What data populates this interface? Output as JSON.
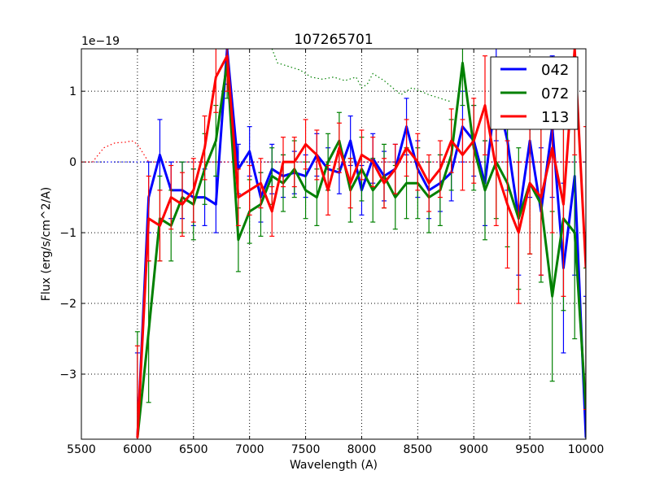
{
  "chart_data": {
    "type": "line",
    "title": "107265701",
    "xlabel": "Wavelength (A)",
    "ylabel": "Flux (erg/s/cm^2/A)",
    "y_offset_label": "1e−19",
    "xlim": [
      5500,
      10000
    ],
    "ylim": [
      -3.92,
      1.6
    ],
    "grid": true,
    "legend_position": "top-right",
    "xticks": [
      5500,
      6000,
      6500,
      7000,
      7500,
      8000,
      8500,
      9000,
      9500,
      10000
    ],
    "xtick_labels": [
      "5500",
      "6000",
      "6500",
      "7000",
      "7500",
      "8000",
      "8500",
      "9000",
      "9500",
      "10000"
    ],
    "yticks": [
      1,
      0,
      -1,
      -2,
      -3
    ],
    "ytick_labels": [
      "1",
      "0",
      "−1",
      "−2",
      "−3"
    ],
    "x": [
      6000,
      6100,
      6200,
      6300,
      6400,
      6500,
      6600,
      6700,
      6800,
      6900,
      7000,
      7100,
      7200,
      7300,
      7400,
      7500,
      7600,
      7700,
      7800,
      7900,
      8000,
      8100,
      8200,
      8300,
      8400,
      8500,
      8600,
      8700,
      8800,
      8900,
      9000,
      9100,
      9200,
      9300,
      9400,
      9500,
      9600,
      9700,
      9800,
      9900,
      10000
    ],
    "series": [
      {
        "name": "042",
        "color": "#0000ff",
        "values": [
          -3.9,
          -0.5,
          0.1,
          -0.4,
          -0.4,
          -0.5,
          -0.5,
          -0.6,
          1.6,
          -0.1,
          0.15,
          -0.5,
          -0.1,
          -0.2,
          -0.15,
          -0.2,
          0.1,
          -0.1,
          -0.15,
          0.3,
          -0.4,
          0.05,
          -0.2,
          -0.1,
          0.5,
          -0.1,
          -0.4,
          -0.3,
          -0.15,
          0.5,
          0.3,
          -0.3,
          1.0,
          0.3,
          -0.8,
          0.3,
          -0.7,
          0.5,
          -1.5,
          -0.2,
          -3.9
        ],
        "errors": [
          1.2,
          0.5,
          0.5,
          0.4,
          0.4,
          0.4,
          0.4,
          0.4,
          0.5,
          0.35,
          0.35,
          0.35,
          0.35,
          0.3,
          0.3,
          0.3,
          0.3,
          0.3,
          0.3,
          0.35,
          0.35,
          0.35,
          0.35,
          0.35,
          0.4,
          0.4,
          0.4,
          0.4,
          0.4,
          0.5,
          0.5,
          0.6,
          0.7,
          0.7,
          0.8,
          0.8,
          0.9,
          1.0,
          1.2,
          1.4,
          2.0
        ]
      },
      {
        "name": "072",
        "color": "#008000",
        "values": [
          -3.9,
          -2.4,
          -0.8,
          -0.9,
          -0.5,
          -0.6,
          -0.1,
          0.3,
          1.4,
          -1.1,
          -0.7,
          -0.6,
          -0.2,
          -0.3,
          -0.1,
          -0.4,
          -0.5,
          0.0,
          0.3,
          -0.4,
          -0.1,
          -0.4,
          -0.2,
          -0.5,
          -0.3,
          -0.3,
          -0.5,
          -0.4,
          0.1,
          1.4,
          0.2,
          -0.4,
          0.0,
          -0.3,
          -0.8,
          -0.3,
          -0.6,
          -1.9,
          -0.8,
          -1.0,
          -3.5
        ],
        "errors": [
          1.5,
          1.0,
          0.6,
          0.5,
          0.5,
          0.5,
          0.5,
          0.5,
          0.5,
          0.45,
          0.45,
          0.45,
          0.4,
          0.4,
          0.4,
          0.4,
          0.4,
          0.4,
          0.4,
          0.45,
          0.45,
          0.45,
          0.45,
          0.45,
          0.5,
          0.5,
          0.5,
          0.5,
          0.5,
          0.6,
          0.6,
          0.7,
          0.8,
          0.9,
          1.0,
          1.0,
          1.1,
          1.2,
          1.3,
          1.5,
          2.0
        ]
      },
      {
        "name": "113",
        "color": "#ff0000",
        "values": [
          -3.9,
          -0.8,
          -0.9,
          -0.5,
          -0.6,
          -0.4,
          0.2,
          1.2,
          1.5,
          -0.5,
          -0.4,
          -0.3,
          -0.7,
          0.0,
          0.0,
          0.25,
          0.1,
          -0.4,
          0.2,
          -0.3,
          0.1,
          0.0,
          -0.3,
          -0.1,
          0.2,
          0.0,
          -0.3,
          -0.1,
          0.3,
          0.1,
          0.3,
          0.8,
          -0.1,
          -0.6,
          -1.0,
          -0.3,
          -0.5,
          0.2,
          -0.6,
          1.6,
          -1.5
        ],
        "errors": [
          1.3,
          0.6,
          0.5,
          0.45,
          0.45,
          0.45,
          0.45,
          0.5,
          0.5,
          0.4,
          0.35,
          0.35,
          0.35,
          0.35,
          0.35,
          0.35,
          0.35,
          0.35,
          0.35,
          0.35,
          0.35,
          0.35,
          0.35,
          0.35,
          0.4,
          0.4,
          0.4,
          0.4,
          0.45,
          0.5,
          0.6,
          0.7,
          0.8,
          0.9,
          1.0,
          1.0,
          1.1,
          1.2,
          1.3,
          1.5,
          2.0
        ]
      }
    ],
    "reference_lines": [
      {
        "name": "042-ref",
        "color": "#0000ff",
        "x": [
          5500,
          6000,
          10000
        ],
        "values": [
          0,
          0,
          0
        ]
      },
      {
        "name": "113-ref",
        "color": "#ff0000",
        "x": [
          5500,
          5600,
          5650,
          5700,
          5800,
          5900,
          5950,
          6000,
          6100,
          10000
        ],
        "values": [
          0,
          0,
          0.1,
          0.2,
          0.27,
          0.28,
          0.3,
          0.25,
          0,
          0
        ]
      },
      {
        "name": "072-ref",
        "color": "#008000",
        "x": [
          7200,
          7250,
          7350,
          7450,
          7550,
          7650,
          7750,
          7850,
          7950,
          8000,
          8050,
          8100,
          8200,
          8350,
          8450,
          8600,
          8800
        ],
        "values": [
          1.6,
          1.4,
          1.35,
          1.3,
          1.2,
          1.17,
          1.2,
          1.15,
          1.2,
          1.05,
          1.1,
          1.25,
          1.15,
          0.95,
          1.05,
          0.95,
          0.85
        ]
      }
    ]
  }
}
